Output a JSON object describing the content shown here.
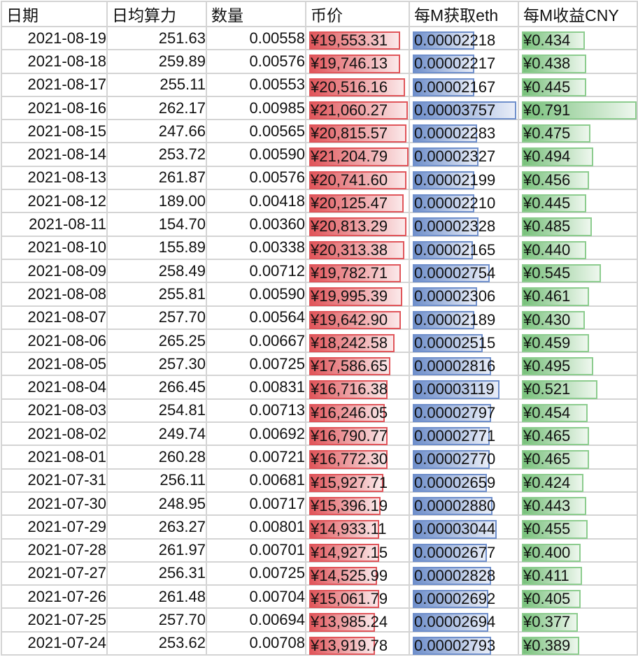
{
  "headers": [
    "日期",
    "日均算力",
    "数量",
    "币价",
    "每M获取eth",
    "每M收益CNY"
  ],
  "colors": {
    "price_bar": "#e0555a",
    "eth_bar": "#6f8fcb",
    "cny_bar": "#77c07a",
    "grid": "#d4d4d4"
  },
  "rows": [
    {
      "date": "2021-08-19",
      "hashrate": "251.63",
      "qty": "0.00558",
      "price": "¥19,553.31",
      "eth_per_m": "0.00002218",
      "cny_per_m": "¥0.434",
      "price_w": 130,
      "eth_w": 88,
      "cny_w": 90
    },
    {
      "date": "2021-08-18",
      "hashrate": "259.89",
      "qty": "0.00576",
      "price": "¥19,746.13",
      "eth_per_m": "0.00002217",
      "cny_per_m": "¥0.438",
      "price_w": 130,
      "eth_w": 88,
      "cny_w": 92
    },
    {
      "date": "2021-08-17",
      "hashrate": "255.11",
      "qty": "0.00553",
      "price": "¥20,516.16",
      "eth_per_m": "0.00002167",
      "cny_per_m": "¥0.445",
      "price_w": 137,
      "eth_w": 88,
      "cny_w": 92
    },
    {
      "date": "2021-08-16",
      "hashrate": "262.17",
      "qty": "0.00985",
      "price": "¥21,060.27",
      "eth_per_m": "0.00003757",
      "cny_per_m": "¥0.791",
      "price_w": 141,
      "eth_w": 148,
      "cny_w": 164
    },
    {
      "date": "2021-08-15",
      "hashrate": "247.66",
      "qty": "0.00565",
      "price": "¥20,815.57",
      "eth_per_m": "0.00002283",
      "cny_per_m": "¥0.475",
      "price_w": 139,
      "eth_w": 92,
      "cny_w": 98
    },
    {
      "date": "2021-08-14",
      "hashrate": "253.72",
      "qty": "0.00590",
      "price": "¥21,204.79",
      "eth_per_m": "0.00002327",
      "cny_per_m": "¥0.494",
      "price_w": 142,
      "eth_w": 94,
      "cny_w": 102
    },
    {
      "date": "2021-08-13",
      "hashrate": "261.87",
      "qty": "0.00576",
      "price": "¥20,741.60",
      "eth_per_m": "0.00002199",
      "cny_per_m": "¥0.456",
      "price_w": 139,
      "eth_w": 88,
      "cny_w": 96
    },
    {
      "date": "2021-08-12",
      "hashrate": "189.00",
      "qty": "0.00418",
      "price": "¥20,125.47",
      "eth_per_m": "0.00002210",
      "cny_per_m": "¥0.445",
      "price_w": 135,
      "eth_w": 88,
      "cny_w": 92
    },
    {
      "date": "2021-08-11",
      "hashrate": "154.70",
      "qty": "0.00360",
      "price": "¥20,813.29",
      "eth_per_m": "0.00002328",
      "cny_per_m": "¥0.485",
      "price_w": 139,
      "eth_w": 94,
      "cny_w": 100
    },
    {
      "date": "2021-08-10",
      "hashrate": "155.89",
      "qty": "0.00338",
      "price": "¥20,313.38",
      "eth_per_m": "0.00002165",
      "cny_per_m": "¥0.440",
      "price_w": 136,
      "eth_w": 86,
      "cny_w": 92
    },
    {
      "date": "2021-08-09",
      "hashrate": "258.49",
      "qty": "0.00712",
      "price": "¥19,782.71",
      "eth_per_m": "0.00002754",
      "cny_per_m": "¥0.545",
      "price_w": 131,
      "eth_w": 110,
      "cny_w": 113
    },
    {
      "date": "2021-08-08",
      "hashrate": "255.81",
      "qty": "0.00590",
      "price": "¥19,995.39",
      "eth_per_m": "0.00002306",
      "cny_per_m": "¥0.461",
      "price_w": 133,
      "eth_w": 92,
      "cny_w": 96
    },
    {
      "date": "2021-08-07",
      "hashrate": "257.70",
      "qty": "0.00564",
      "price": "¥19,642.90",
      "eth_per_m": "0.00002189",
      "cny_per_m": "¥0.430",
      "price_w": 131,
      "eth_w": 88,
      "cny_w": 90
    },
    {
      "date": "2021-08-06",
      "hashrate": "265.25",
      "qty": "0.00667",
      "price": "¥18,242.58",
      "eth_per_m": "0.00002515",
      "cny_per_m": "¥0.459",
      "price_w": 122,
      "eth_w": 100,
      "cny_w": 96
    },
    {
      "date": "2021-08-05",
      "hashrate": "257.30",
      "qty": "0.00725",
      "price": "¥17,586.65",
      "eth_per_m": "0.00002816",
      "cny_per_m": "¥0.495",
      "price_w": 116,
      "eth_w": 112,
      "cny_w": 102
    },
    {
      "date": "2021-08-04",
      "hashrate": "266.45",
      "qty": "0.00831",
      "price": "¥16,716.38",
      "eth_per_m": "0.00003119",
      "cny_per_m": "¥0.521",
      "price_w": 112,
      "eth_w": 124,
      "cny_w": 108
    },
    {
      "date": "2021-08-03",
      "hashrate": "254.81",
      "qty": "0.00713",
      "price": "¥16,246.05",
      "eth_per_m": "0.00002797",
      "cny_per_m": "¥0.454",
      "price_w": 108,
      "eth_w": 112,
      "cny_w": 94
    },
    {
      "date": "2021-08-02",
      "hashrate": "249.74",
      "qty": "0.00692",
      "price": "¥16,790.77",
      "eth_per_m": "0.00002771",
      "cny_per_m": "¥0.465",
      "price_w": 112,
      "eth_w": 110,
      "cny_w": 96
    },
    {
      "date": "2021-08-01",
      "hashrate": "260.28",
      "qty": "0.00721",
      "price": "¥16,772.30",
      "eth_per_m": "0.00002770",
      "cny_per_m": "¥0.465",
      "price_w": 112,
      "eth_w": 110,
      "cny_w": 96
    },
    {
      "date": "2021-07-31",
      "hashrate": "256.11",
      "qty": "0.00681",
      "price": "¥15,927.71",
      "eth_per_m": "0.00002659",
      "cny_per_m": "¥0.424",
      "price_w": 106,
      "eth_w": 106,
      "cny_w": 88
    },
    {
      "date": "2021-07-30",
      "hashrate": "248.95",
      "qty": "0.00717",
      "price": "¥15,396.19",
      "eth_per_m": "0.00002880",
      "cny_per_m": "¥0.443",
      "price_w": 102,
      "eth_w": 114,
      "cny_w": 92
    },
    {
      "date": "2021-07-29",
      "hashrate": "263.27",
      "qty": "0.00801",
      "price": "¥14,933.11",
      "eth_per_m": "0.00003044",
      "cny_per_m": "¥0.455",
      "price_w": 100,
      "eth_w": 120,
      "cny_w": 94
    },
    {
      "date": "2021-07-28",
      "hashrate": "261.97",
      "qty": "0.00701",
      "price": "¥14,927.15",
      "eth_per_m": "0.00002677",
      "cny_per_m": "¥0.400",
      "price_w": 100,
      "eth_w": 106,
      "cny_w": 84
    },
    {
      "date": "2021-07-27",
      "hashrate": "256.31",
      "qty": "0.00725",
      "price": "¥14,525.99",
      "eth_per_m": "0.00002828",
      "cny_per_m": "¥0.411",
      "price_w": 97,
      "eth_w": 112,
      "cny_w": 86
    },
    {
      "date": "2021-07-26",
      "hashrate": "261.48",
      "qty": "0.00704",
      "price": "¥15,061.79",
      "eth_per_m": "0.00002692",
      "cny_per_m": "¥0.405",
      "price_w": 100,
      "eth_w": 108,
      "cny_w": 84
    },
    {
      "date": "2021-07-25",
      "hashrate": "257.70",
      "qty": "0.00694",
      "price": "¥13,985.24",
      "eth_per_m": "0.00002694",
      "cny_per_m": "¥0.377",
      "price_w": 94,
      "eth_w": 108,
      "cny_w": 80
    },
    {
      "date": "2021-07-24",
      "hashrate": "253.62",
      "qty": "0.00708",
      "price": "¥13,919.78",
      "eth_per_m": "0.00002793",
      "cny_per_m": "¥0.389",
      "price_w": 94,
      "eth_w": 112,
      "cny_w": 82
    }
  ]
}
